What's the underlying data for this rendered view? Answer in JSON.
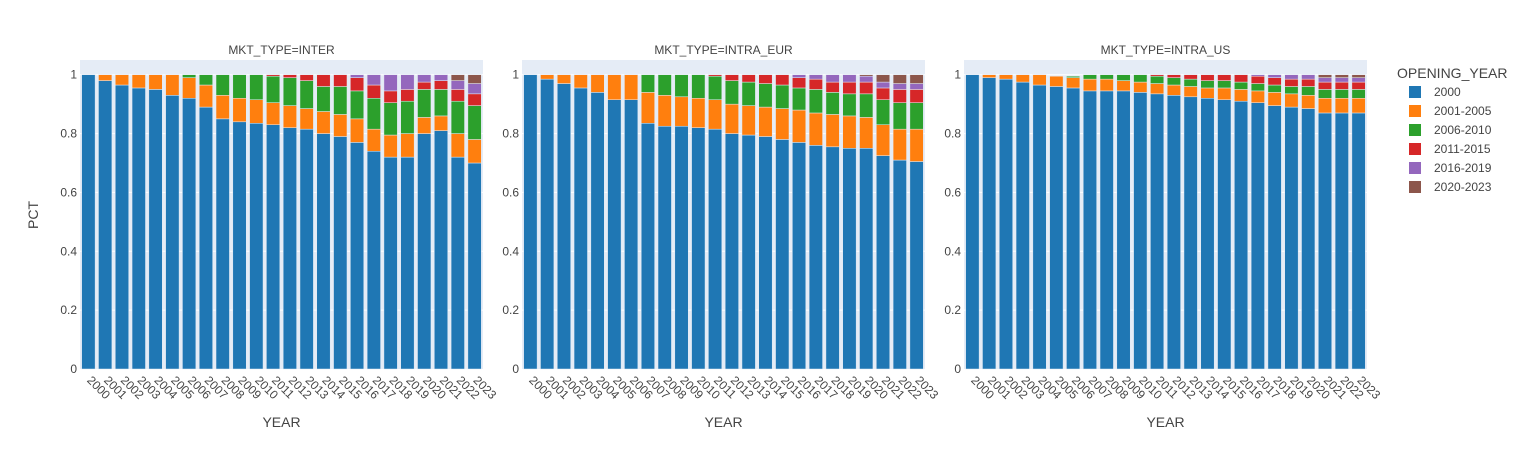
{
  "chart_data": {
    "type": "bar",
    "stacked": true,
    "ylabel": "PCT",
    "xlabel": "YEAR",
    "ylim": [
      0,
      1.05
    ],
    "yticks": [
      0,
      0.2,
      0.4,
      0.6,
      0.8,
      1
    ],
    "ytick_labels": [
      "0",
      "0.2",
      "0.4",
      "0.6",
      "0.8",
      "1"
    ],
    "categories": [
      "2000",
      "2001",
      "2002",
      "2003",
      "2004",
      "2005",
      "2006",
      "2007",
      "2008",
      "2009",
      "2010",
      "2011",
      "2012",
      "2013",
      "2014",
      "2015",
      "2016",
      "2017",
      "2018",
      "2019",
      "2020",
      "2021",
      "2022",
      "2023"
    ],
    "legend": {
      "title": "OPENING_YEAR",
      "placement": "right",
      "items": [
        {
          "name": "2000",
          "color": "#1f77b4"
        },
        {
          "name": "2001-2005",
          "color": "#ff7f0e"
        },
        {
          "name": "2006-2010",
          "color": "#2ca02c"
        },
        {
          "name": "2011-2015",
          "color": "#d62728"
        },
        {
          "name": "2016-2019",
          "color": "#9467bd"
        },
        {
          "name": "2020-2023",
          "color": "#8c564b"
        }
      ]
    },
    "panels": [
      {
        "title": "MKT_TYPE=INTER",
        "series": [
          {
            "name": "2000",
            "values": [
              1.0,
              0.98,
              0.965,
              0.955,
              0.95,
              0.93,
              0.92,
              0.89,
              0.85,
              0.84,
              0.835,
              0.83,
              0.82,
              0.815,
              0.8,
              0.79,
              0.77,
              0.74,
              0.72,
              0.72,
              0.8,
              0.81,
              0.72,
              0.7
            ]
          },
          {
            "name": "2001-2005",
            "values": [
              0,
              0.02,
              0.035,
              0.045,
              0.05,
              0.07,
              0.07,
              0.075,
              0.08,
              0.08,
              0.08,
              0.075,
              0.075,
              0.07,
              0.075,
              0.075,
              0.08,
              0.075,
              0.075,
              0.08,
              0.055,
              0.05,
              0.08,
              0.08
            ]
          },
          {
            "name": "2006-2010",
            "values": [
              0,
              0,
              0,
              0,
              0,
              0,
              0.01,
              0.035,
              0.07,
              0.08,
              0.085,
              0.09,
              0.095,
              0.095,
              0.085,
              0.095,
              0.095,
              0.105,
              0.11,
              0.11,
              0.095,
              0.09,
              0.11,
              0.115
            ]
          },
          {
            "name": "2011-2015",
            "values": [
              0,
              0,
              0,
              0,
              0,
              0,
              0,
              0,
              0,
              0,
              0,
              0.005,
              0.01,
              0.02,
              0.04,
              0.04,
              0.045,
              0.045,
              0.04,
              0.04,
              0.025,
              0.03,
              0.04,
              0.04
            ]
          },
          {
            "name": "2016-2019",
            "values": [
              0,
              0,
              0,
              0,
              0,
              0,
              0,
              0,
              0,
              0,
              0,
              0,
              0,
              0,
              0,
              0,
              0.01,
              0.035,
              0.055,
              0.05,
              0.025,
              0.02,
              0.03,
              0.035
            ]
          },
          {
            "name": "2020-2023",
            "values": [
              0,
              0,
              0,
              0,
              0,
              0,
              0,
              0,
              0,
              0,
              0,
              0,
              0,
              0,
              0,
              0,
              0,
              0,
              0,
              0,
              0,
              0,
              0.02,
              0.03
            ]
          }
        ]
      },
      {
        "title": "MKT_TYPE=INTRA_EUR",
        "series": [
          {
            "name": "2000",
            "values": [
              1.0,
              0.985,
              0.97,
              0.955,
              0.94,
              0.915,
              0.915,
              0.835,
              0.825,
              0.825,
              0.82,
              0.815,
              0.8,
              0.795,
              0.79,
              0.78,
              0.77,
              0.76,
              0.755,
              0.75,
              0.75,
              0.725,
              0.71,
              0.705
            ]
          },
          {
            "name": "2001-2005",
            "values": [
              0,
              0.015,
              0.03,
              0.045,
              0.06,
              0.085,
              0.085,
              0.105,
              0.105,
              0.1,
              0.1,
              0.1,
              0.1,
              0.1,
              0.1,
              0.105,
              0.11,
              0.11,
              0.11,
              0.11,
              0.105,
              0.105,
              0.105,
              0.11
            ]
          },
          {
            "name": "2006-2010",
            "values": [
              0,
              0,
              0,
              0,
              0,
              0,
              0,
              0.06,
              0.07,
              0.075,
              0.08,
              0.08,
              0.08,
              0.08,
              0.08,
              0.08,
              0.075,
              0.08,
              0.075,
              0.075,
              0.08,
              0.085,
              0.09,
              0.09
            ]
          },
          {
            "name": "2011-2015",
            "values": [
              0,
              0,
              0,
              0,
              0,
              0,
              0,
              0,
              0,
              0,
              0,
              0.005,
              0.02,
              0.025,
              0.03,
              0.035,
              0.035,
              0.035,
              0.035,
              0.04,
              0.04,
              0.04,
              0.045,
              0.045
            ]
          },
          {
            "name": "2016-2019",
            "values": [
              0,
              0,
              0,
              0,
              0,
              0,
              0,
              0,
              0,
              0,
              0,
              0,
              0,
              0,
              0,
              0,
              0.01,
              0.015,
              0.025,
              0.025,
              0.02,
              0.02,
              0.02,
              0.02
            ]
          },
          {
            "name": "2020-2023",
            "values": [
              0,
              0,
              0,
              0,
              0,
              0,
              0,
              0,
              0,
              0,
              0,
              0,
              0,
              0,
              0,
              0,
              0,
              0,
              0,
              0,
              0.005,
              0.025,
              0.03,
              0.03
            ]
          }
        ]
      },
      {
        "title": "MKT_TYPE=INTRA_US",
        "series": [
          {
            "name": "2000",
            "values": [
              1.0,
              0.99,
              0.985,
              0.975,
              0.965,
              0.96,
              0.955,
              0.945,
              0.945,
              0.945,
              0.94,
              0.935,
              0.93,
              0.925,
              0.92,
              0.915,
              0.91,
              0.905,
              0.895,
              0.89,
              0.885,
              0.87,
              0.87,
              0.87
            ]
          },
          {
            "name": "2001-2005",
            "values": [
              0,
              0.01,
              0.015,
              0.025,
              0.035,
              0.035,
              0.035,
              0.04,
              0.04,
              0.035,
              0.035,
              0.035,
              0.035,
              0.035,
              0.035,
              0.04,
              0.04,
              0.04,
              0.045,
              0.045,
              0.045,
              0.05,
              0.05,
              0.05
            ]
          },
          {
            "name": "2006-2010",
            "values": [
              0,
              0,
              0,
              0,
              0,
              0,
              0.005,
              0.015,
              0.015,
              0.02,
              0.025,
              0.025,
              0.025,
              0.025,
              0.025,
              0.025,
              0.025,
              0.025,
              0.025,
              0.025,
              0.03,
              0.03,
              0.03,
              0.03
            ]
          },
          {
            "name": "2011-2015",
            "values": [
              0,
              0,
              0,
              0,
              0,
              0,
              0,
              0,
              0,
              0,
              0,
              0.005,
              0.01,
              0.015,
              0.02,
              0.02,
              0.025,
              0.025,
              0.025,
              0.025,
              0.025,
              0.025,
              0.025,
              0.025
            ]
          },
          {
            "name": "2016-2019",
            "values": [
              0,
              0,
              0,
              0,
              0,
              0,
              0,
              0,
              0,
              0,
              0,
              0,
              0,
              0,
              0,
              0,
              0,
              0.005,
              0.01,
              0.015,
              0.015,
              0.015,
              0.015,
              0.015
            ]
          },
          {
            "name": "2020-2023",
            "values": [
              0,
              0,
              0,
              0,
              0,
              0,
              0,
              0,
              0,
              0,
              0,
              0,
              0,
              0,
              0,
              0,
              0,
              0,
              0,
              0,
              0,
              0.01,
              0.01,
              0.01
            ]
          }
        ]
      }
    ]
  }
}
